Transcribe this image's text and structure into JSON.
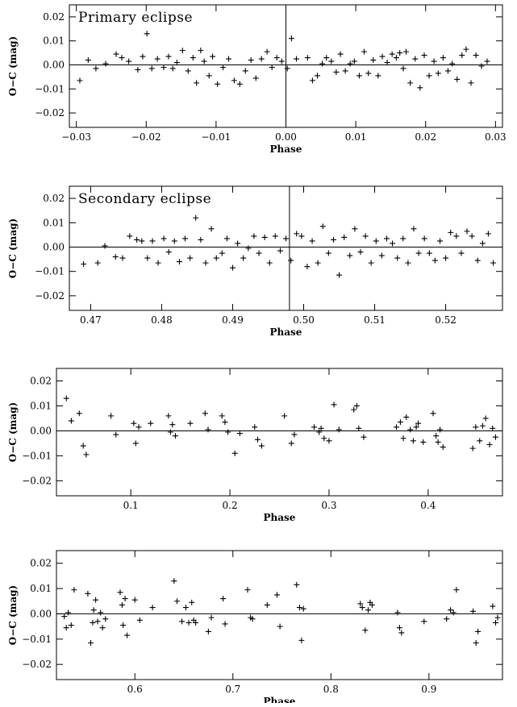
{
  "chart_data": [
    {
      "type": "scatter",
      "title": "Primary eclipse",
      "xlabel": "Phase",
      "ylabel": "O−C (mag)",
      "xlim": [
        -0.031,
        0.031
      ],
      "ylim": [
        -0.026,
        0.025
      ],
      "xticks": [
        -0.03,
        -0.02,
        -0.01,
        0.0,
        0.01,
        0.02,
        0.03
      ],
      "xtick_labels": [
        "−0.03",
        "−0.02",
        "−0.01",
        "0.00",
        "0.01",
        "0.02",
        "0.03"
      ],
      "yticks": [
        -0.02,
        -0.01,
        0.0,
        0.01,
        0.02
      ],
      "ytick_labels": [
        "−0.02",
        "−0.01",
        "0.00",
        "0.01",
        "0.02"
      ],
      "vline": 0.0,
      "hline": 0.0,
      "grid": false,
      "marker": "plus",
      "x": [
        -0.0295,
        -0.0283,
        -0.0272,
        -0.0258,
        -0.0243,
        -0.0235,
        -0.0225,
        -0.0212,
        -0.0205,
        -0.0199,
        -0.0192,
        -0.0184,
        -0.0175,
        -0.0168,
        -0.0162,
        -0.0156,
        -0.0148,
        -0.014,
        -0.0133,
        -0.0128,
        -0.0122,
        -0.0117,
        -0.011,
        -0.0105,
        -0.0098,
        -0.009,
        -0.0082,
        -0.0074,
        -0.0066,
        -0.0058,
        -0.005,
        -0.0043,
        -0.0035,
        -0.0027,
        -0.002,
        -0.0013,
        -0.0006,
        0.0002,
        0.0008,
        0.0015,
        0.0031,
        0.0038,
        0.0045,
        0.0052,
        0.0058,
        0.0065,
        0.0072,
        0.0078,
        0.0085,
        0.0092,
        0.0098,
        0.0105,
        0.0112,
        0.0118,
        0.0125,
        0.0132,
        0.0138,
        0.0145,
        0.0152,
        0.0158,
        0.0163,
        0.0168,
        0.0172,
        0.0178,
        0.0185,
        0.0192,
        0.0198,
        0.0205,
        0.0212,
        0.0218,
        0.0225,
        0.0232,
        0.0238,
        0.0245,
        0.0252,
        0.0258,
        0.0265,
        0.0272,
        0.028,
        0.0288
      ],
      "y": [
        -0.0065,
        0.002,
        -0.0015,
        0.0005,
        0.0045,
        0.003,
        0.0015,
        -0.002,
        0.0035,
        0.013,
        -0.0015,
        0.0025,
        -0.001,
        0.0035,
        -0.0015,
        0.001,
        0.006,
        -0.0025,
        0.003,
        -0.0075,
        0.006,
        0.0015,
        -0.0045,
        0.0035,
        -0.008,
        -0.001,
        0.0025,
        -0.0065,
        -0.008,
        -0.0025,
        0.002,
        -0.0055,
        0.0025,
        0.0055,
        -0.001,
        0.003,
        0.0015,
        -0.0015,
        0.011,
        0.0025,
        0.003,
        -0.0065,
        -0.0045,
        0.0005,
        0.003,
        0.0015,
        -0.003,
        0.0045,
        -0.0025,
        0.0005,
        0.0015,
        -0.0045,
        0.0055,
        -0.0035,
        0.002,
        -0.0045,
        0.0035,
        0.001,
        0.0045,
        0.003,
        0.005,
        -0.0015,
        0.0055,
        -0.0075,
        0.0025,
        -0.0095,
        0.004,
        -0.0045,
        0.0015,
        -0.0035,
        0.003,
        -0.0025,
        0.0005,
        -0.006,
        0.004,
        0.0065,
        -0.0075,
        0.004,
        -0.0005,
        0.0015
      ]
    },
    {
      "type": "scatter",
      "title": "Secondary eclipse",
      "xlabel": "Phase",
      "ylabel": "O−C (mag)",
      "xlim": [
        0.467,
        0.528
      ],
      "ylim": [
        -0.026,
        0.025
      ],
      "xticks": [
        0.47,
        0.48,
        0.49,
        0.5,
        0.51,
        0.52
      ],
      "xtick_labels": [
        "0.47",
        "0.48",
        "0.49",
        "0.50",
        "0.51",
        "0.52"
      ],
      "yticks": [
        -0.02,
        -0.01,
        0.0,
        0.01,
        0.02
      ],
      "ytick_labels": [
        "−0.02",
        "−0.01",
        "0.00",
        "0.01",
        "0.02"
      ],
      "vline": 0.498,
      "hline": 0.0,
      "grid": false,
      "marker": "plus",
      "x": [
        0.469,
        0.471,
        0.472,
        0.4735,
        0.4745,
        0.4755,
        0.4765,
        0.4772,
        0.478,
        0.4787,
        0.4795,
        0.4803,
        0.481,
        0.4818,
        0.4825,
        0.4833,
        0.484,
        0.4848,
        0.4855,
        0.4862,
        0.487,
        0.4877,
        0.4885,
        0.4892,
        0.49,
        0.4907,
        0.4915,
        0.4922,
        0.493,
        0.4937,
        0.4945,
        0.4952,
        0.496,
        0.4967,
        0.4975,
        0.4982,
        0.499,
        0.4997,
        0.5005,
        0.5012,
        0.502,
        0.5027,
        0.5035,
        0.5042,
        0.505,
        0.5057,
        0.5065,
        0.5072,
        0.508,
        0.5087,
        0.5095,
        0.5102,
        0.511,
        0.5117,
        0.5125,
        0.5132,
        0.514,
        0.5147,
        0.5155,
        0.5162,
        0.517,
        0.5177,
        0.5185,
        0.5192,
        0.52,
        0.5207,
        0.5215,
        0.5222,
        0.523,
        0.5237,
        0.5245,
        0.5252,
        0.526,
        0.5267
      ],
      "y": [
        -0.007,
        -0.0065,
        0.0005,
        -0.004,
        -0.0045,
        0.0045,
        0.003,
        0.0025,
        -0.0045,
        0.0025,
        -0.0065,
        0.0035,
        -0.002,
        0.0025,
        -0.006,
        0.0035,
        -0.0045,
        0.012,
        0.003,
        -0.0065,
        0.0075,
        -0.0045,
        -0.0025,
        0.0035,
        -0.0085,
        0.0015,
        -0.0045,
        -0.0005,
        0.0045,
        -0.0025,
        0.004,
        -0.0065,
        0.0045,
        -0.0015,
        0.0035,
        -0.0055,
        0.0055,
        0.0045,
        -0.008,
        0.0025,
        -0.0065,
        0.0085,
        -0.0025,
        0.003,
        -0.0115,
        0.004,
        -0.0035,
        0.0075,
        -0.002,
        0.0045,
        -0.0065,
        0.0025,
        -0.0035,
        0.0035,
        0.0015,
        -0.0045,
        0.0035,
        -0.0065,
        0.0075,
        -0.0025,
        0.0035,
        -0.0025,
        -0.0055,
        0.0025,
        -0.0045,
        0.006,
        0.0045,
        -0.0025,
        0.0065,
        0.0045,
        -0.0055,
        0.0015,
        0.0055,
        -0.0065
      ]
    },
    {
      "type": "scatter",
      "title": "",
      "xlabel": "Phase",
      "ylabel": "O−C (mag)",
      "xlim": [
        0.025,
        0.475
      ],
      "ylim": [
        -0.026,
        0.025
      ],
      "xticks": [
        0.1,
        0.2,
        0.3,
        0.4
      ],
      "xtick_labels": [
        "0.1",
        "0.2",
        "0.3",
        "0.4"
      ],
      "yticks": [
        -0.02,
        -0.01,
        0.0,
        0.01,
        0.02
      ],
      "ytick_labels": [
        "−0.02",
        "−0.01",
        "0.00",
        "0.01",
        "0.02"
      ],
      "vline": null,
      "hline": 0.0,
      "grid": false,
      "marker": "plus",
      "x": [
        0.035,
        0.04,
        0.048,
        0.052,
        0.055,
        0.08,
        0.085,
        0.103,
        0.105,
        0.108,
        0.12,
        0.138,
        0.14,
        0.142,
        0.145,
        0.16,
        0.175,
        0.178,
        0.192,
        0.195,
        0.198,
        0.205,
        0.21,
        0.225,
        0.228,
        0.232,
        0.255,
        0.262,
        0.265,
        0.285,
        0.29,
        0.292,
        0.295,
        0.3,
        0.305,
        0.31,
        0.325,
        0.328,
        0.33,
        0.335,
        0.368,
        0.372,
        0.375,
        0.378,
        0.382,
        0.385,
        0.388,
        0.39,
        0.395,
        0.405,
        0.408,
        0.41,
        0.412,
        0.415,
        0.445,
        0.448,
        0.452,
        0.455,
        0.458,
        0.462,
        0.465,
        0.468
      ],
      "y": [
        0.013,
        0.004,
        0.007,
        -0.006,
        -0.0095,
        0.006,
        -0.0015,
        0.003,
        -0.005,
        0.0015,
        0.003,
        0.006,
        -0.0005,
        0.0025,
        -0.002,
        0.003,
        0.007,
        0.0005,
        0.006,
        0.0035,
        -0.0005,
        -0.009,
        -0.001,
        0.0015,
        -0.0035,
        -0.006,
        0.006,
        -0.005,
        -0.0015,
        0.0015,
        -0.0005,
        0.001,
        -0.003,
        -0.004,
        0.0105,
        0.0005,
        0.0085,
        0.01,
        0.001,
        -0.0025,
        0.0015,
        0.0035,
        -0.003,
        0.0055,
        0.0005,
        -0.004,
        0.0015,
        0.003,
        -0.0045,
        0.007,
        -0.002,
        -0.0045,
        0.0005,
        -0.0065,
        -0.007,
        0.0015,
        -0.004,
        0.002,
        0.005,
        -0.0055,
        0.001,
        -0.0025
      ]
    },
    {
      "type": "scatter",
      "title": "",
      "xlabel": "Phase",
      "ylabel": "O−C (mag)",
      "xlim": [
        0.52,
        0.975
      ],
      "ylim": [
        -0.026,
        0.025
      ],
      "xticks": [
        0.6,
        0.7,
        0.8,
        0.9
      ],
      "xtick_labels": [
        "0.6",
        "0.7",
        "0.8",
        "0.9"
      ],
      "yticks": [
        -0.02,
        -0.01,
        0.0,
        0.01,
        0.02
      ],
      "ytick_labels": [
        "−0.02",
        "−0.01",
        "0.00",
        "0.01",
        "0.02"
      ],
      "vline": null,
      "hline": 0.0,
      "grid": false,
      "marker": "plus",
      "x": [
        0.528,
        0.53,
        0.532,
        0.535,
        0.538,
        0.552,
        0.555,
        0.557,
        0.558,
        0.56,
        0.562,
        0.565,
        0.567,
        0.57,
        0.585,
        0.587,
        0.588,
        0.59,
        0.592,
        0.6,
        0.605,
        0.618,
        0.64,
        0.643,
        0.648,
        0.652,
        0.655,
        0.658,
        0.66,
        0.662,
        0.675,
        0.678,
        0.69,
        0.692,
        0.715,
        0.718,
        0.72,
        0.735,
        0.745,
        0.748,
        0.765,
        0.768,
        0.77,
        0.772,
        0.83,
        0.832,
        0.835,
        0.838,
        0.84,
        0.842,
        0.868,
        0.87,
        0.872,
        0.895,
        0.918,
        0.922,
        0.925,
        0.928,
        0.945,
        0.948,
        0.95,
        0.965,
        0.968,
        0.97
      ],
      "y": [
        -0.001,
        -0.0055,
        0.0005,
        -0.0045,
        0.0095,
        0.008,
        -0.0115,
        -0.0035,
        0.0015,
        0.0055,
        -0.003,
        0.0005,
        -0.0055,
        -0.002,
        0.0085,
        0.0035,
        -0.0045,
        0.006,
        -0.0085,
        0.0055,
        -0.0025,
        0.0025,
        0.013,
        0.005,
        -0.003,
        0.0025,
        -0.0035,
        0.0045,
        -0.0025,
        -0.0035,
        -0.007,
        -0.0015,
        0.006,
        -0.004,
        0.0095,
        -0.0015,
        -0.002,
        0.0035,
        0.0075,
        -0.005,
        0.0115,
        0.0025,
        -0.0105,
        0.002,
        0.004,
        0.0025,
        -0.0065,
        0.0015,
        0.0045,
        0.0035,
        0.0005,
        -0.0055,
        -0.0075,
        -0.003,
        -0.002,
        0.0015,
        0.0005,
        0.0095,
        0.001,
        -0.0115,
        -0.007,
        0.003,
        -0.0035,
        -0.0015
      ]
    }
  ]
}
